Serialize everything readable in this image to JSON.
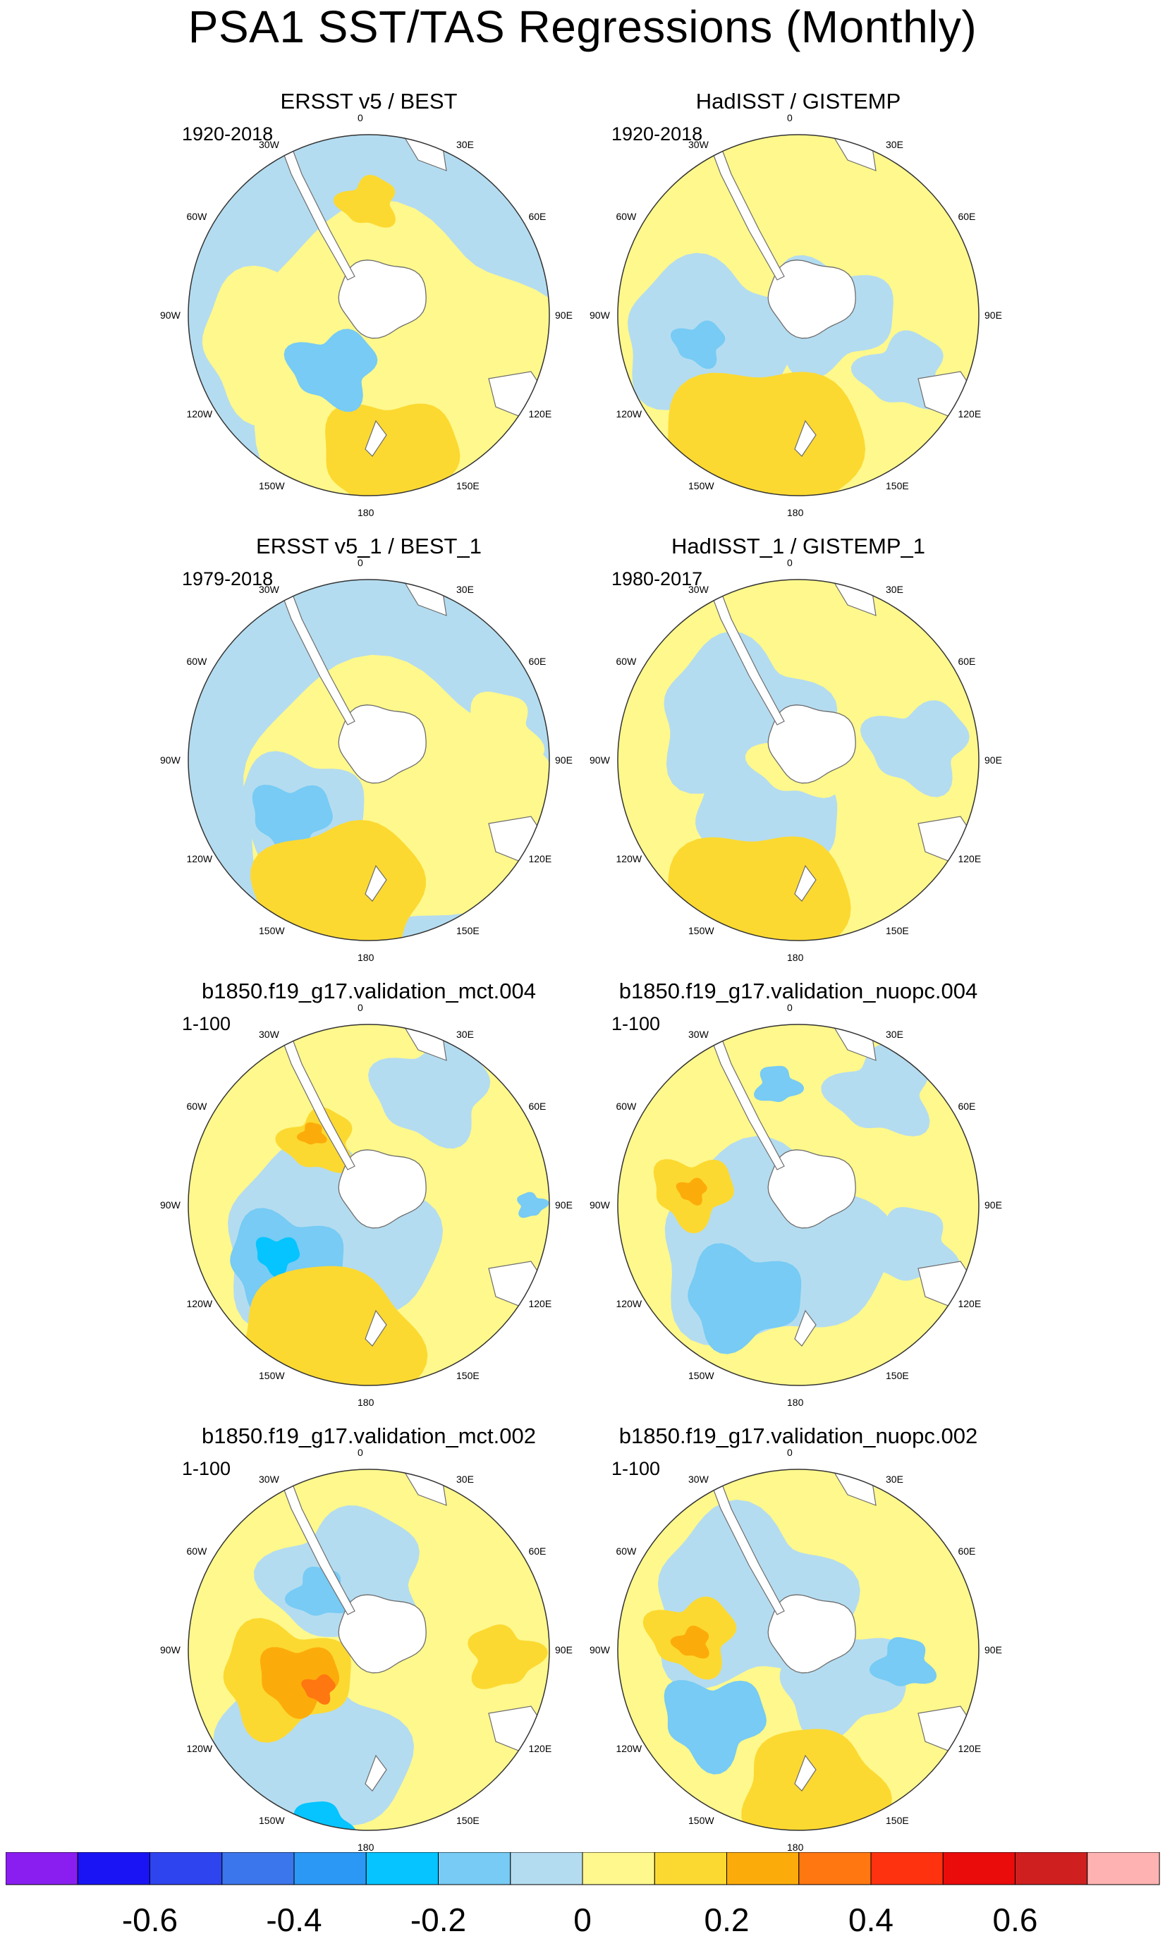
{
  "title": "PSA1 SST/TAS Regressions (Monthly)",
  "panels": [
    {
      "title": "ERSST v5 / BEST",
      "period": "1920-2018"
    },
    {
      "title": "HadISST / GISTEMP",
      "period": "1920-2018"
    },
    {
      "title": "ERSST v5_1 / BEST_1",
      "period": "1979-2018"
    },
    {
      "title": "HadISST_1 / GISTEMP_1",
      "period": "1980-2017"
    },
    {
      "title": "b1850.f19_g17.validation_mct.004",
      "period": "1-100"
    },
    {
      "title": "b1850.f19_g17.validation_nuopc.004",
      "period": "1-100"
    },
    {
      "title": "b1850.f19_g17.validation_mct.002",
      "period": "1-100"
    },
    {
      "title": "b1850.f19_g17.validation_nuopc.002",
      "period": "1-100"
    }
  ],
  "lon_labels": [
    "0",
    "30E",
    "60E",
    "90E",
    "120E",
    "150E",
    "180",
    "150W",
    "120W",
    "90W",
    "60W",
    "30W"
  ],
  "colorbar": {
    "colors": [
      "#8a1ef0",
      "#1a14f5",
      "#2e44ef",
      "#3c76ec",
      "#2b98f5",
      "#05c4ff",
      "#77cbf4",
      "#b4dcf0",
      "#fff88c",
      "#fcd931",
      "#fcac0a",
      "#ff7711",
      "#ff3210",
      "#ea0b0b",
      "#d01f1f",
      "#ffb2b2"
    ],
    "tick_labels": [
      "-0.6",
      "-0.4",
      "-0.2",
      "0",
      "0.2",
      "0.4",
      "0.6"
    ]
  }
}
